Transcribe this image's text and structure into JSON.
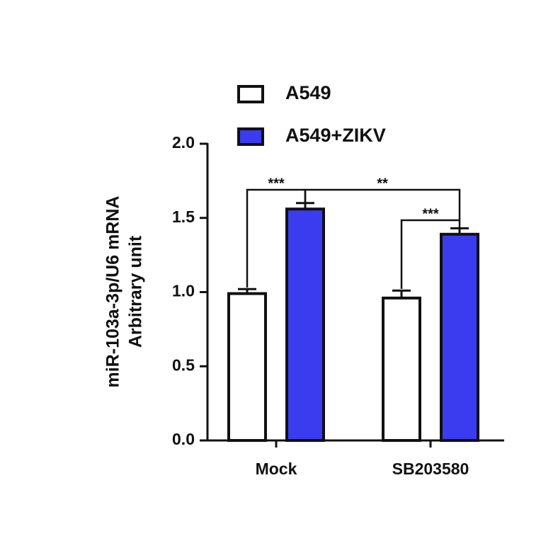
{
  "chart_data": {
    "type": "bar",
    "ylabel": [
      "miR-103a-3p/U6 mRNA",
      "Arbitrary unit"
    ],
    "categories": [
      "Mock",
      "SB203580"
    ],
    "series": [
      {
        "name": "A549",
        "color": "#ffffff",
        "values": [
          0.99,
          0.96
        ],
        "errors": [
          0.03,
          0.05
        ]
      },
      {
        "name": "A549+ZIKV",
        "color": "#3b3bef",
        "values": [
          1.56,
          1.39
        ],
        "errors": [
          0.04,
          0.04
        ]
      }
    ],
    "ylim": [
      0,
      2.0
    ],
    "yticks": [
      {
        "value": 0,
        "label": "0.0"
      },
      0.5,
      {
        "value": 1,
        "label": "1.0"
      },
      1.5,
      {
        "value": 2,
        "label": "2.0"
      }
    ],
    "annotations": [
      "***",
      "**",
      "***"
    ]
  }
}
